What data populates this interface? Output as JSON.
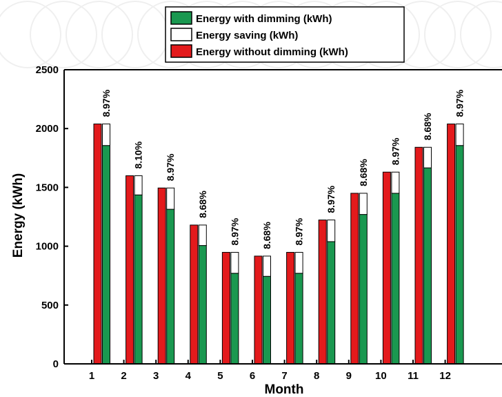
{
  "chart_data": {
    "type": "bar",
    "title": "",
    "xlabel": "Month",
    "ylabel": "Energy (kWh)",
    "ylim": [
      0,
      2500
    ],
    "yticks": [
      "0",
      "500",
      "1000",
      "1500",
      "2000",
      "2500"
    ],
    "categories": [
      "1",
      "2",
      "3",
      "4",
      "5",
      "6",
      "7",
      "8",
      "9",
      "10",
      "11",
      "12"
    ],
    "legend_placement": "top-center",
    "series": [
      {
        "name": "Energy with dimming (kWh)",
        "color": "#1a9850",
        "values": [
          1856,
          1436,
          1314,
          1006,
          770,
          744,
          770,
          1039,
          1270,
          1450,
          1666,
          1856
        ]
      },
      {
        "name": "Energy saving (kWh)",
        "color": "#ffffff",
        "values": [
          183,
          163,
          181,
          174,
          178,
          172,
          178,
          184,
          180,
          180,
          175,
          183
        ]
      },
      {
        "name": "Energy without dimming (kWh)",
        "color": "#e31a1c",
        "values": [
          2039,
          1599,
          1495,
          1180,
          948,
          916,
          948,
          1223,
          1450,
          1630,
          1841,
          2039
        ]
      }
    ],
    "saving_labels": [
      "8.97%",
      "8.10%",
      "8.97%",
      "8.68%",
      "8.97%",
      "8.68%",
      "8.97%",
      "8.97%",
      "8.68%",
      "8.97%",
      "8.68%",
      "8.97%"
    ]
  }
}
